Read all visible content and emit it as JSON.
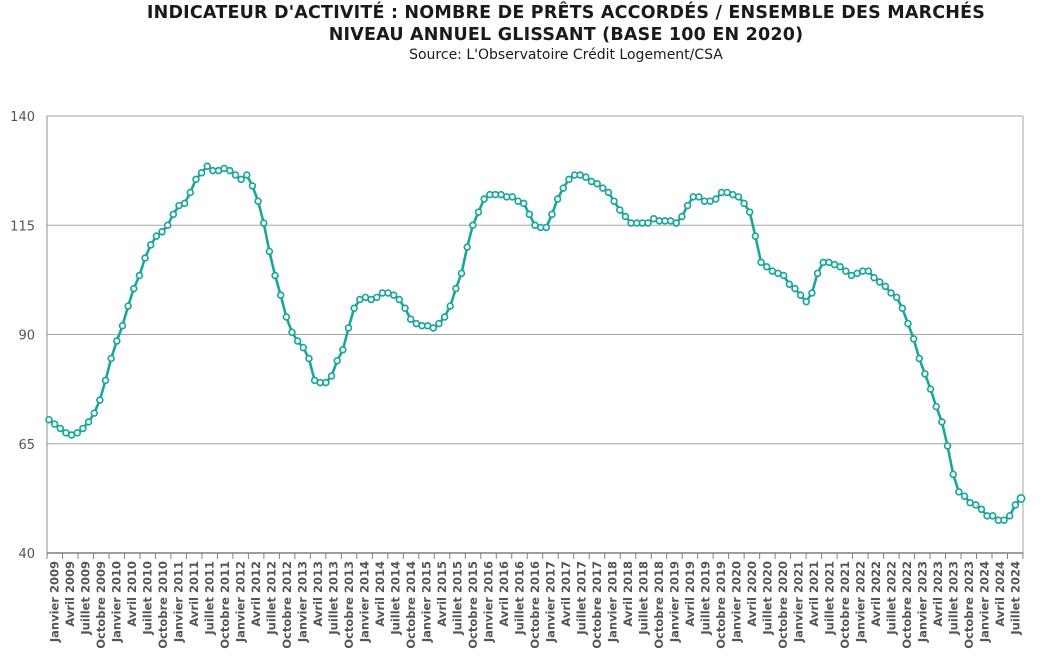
{
  "chart_data": {
    "type": "line",
    "title": "INDICATEUR D'ACTIVITÉ : NOMBRE DE PRÊTS ACCORDÉS / ENSEMBLE DES MARCHÉS",
    "subtitle": "NIVEAU ANNUEL GLISSANT (BASE 100 EN 2020)",
    "source": "Source: L'Observatoire Crédit Logement/CSA",
    "ylim": [
      40,
      140
    ],
    "yticks": [
      "40",
      "65",
      "90",
      "115",
      "140"
    ],
    "grid": true,
    "color": "#1aa69c",
    "x_labels": [
      "Janvier 2009",
      "Avril 2009",
      "Juillet 2009",
      "Octobre 2009",
      "Janvier 2010",
      "Avril 2010",
      "Juillet 2010",
      "Octobre 2010",
      "Janvier 2011",
      "Avril 2011",
      "Juillet 2011",
      "Octobre 2011",
      "Janvier 2012",
      "Avril 2012",
      "Juillet 2012",
      "Octobre 2012",
      "Janvier 2013",
      "Avril 2013",
      "Juillet 2013",
      "Octobre 2013",
      "Janvier 2014",
      "Avril 2014",
      "Juillet 2014",
      "Octobre 2014",
      "Janvier 2015",
      "Avril 2015",
      "Juillet 2015",
      "Octobre 2015",
      "Janvier 2016",
      "Avril 2016",
      "Juillet 2016",
      "Octobre 2016",
      "Janvier 2017",
      "Avril 2017",
      "Juillet 2017",
      "Octobre 2017",
      "Janvier 2018",
      "Avril 2018",
      "Juillet 2018",
      "Octobre 2018",
      "Janvier 2019",
      "Avril 2019",
      "Juillet 2019",
      "Octobre 2019",
      "Janvier 2020",
      "Avril 2020",
      "Juillet 2020",
      "Octobre 2020",
      "Janvier 2021",
      "Avril 2021",
      "Juillet 2021",
      "Octobre 2021",
      "Janvier 2022",
      "Avril 2022",
      "Juillet 2022",
      "Octobre 2022",
      "Janvier 2023",
      "Avril 2023",
      "Juillet 2023",
      "Octobre 2023",
      "Janvier 2024",
      "Avril 2024",
      "Juillet 2024"
    ],
    "values": [
      70.5,
      69.5,
      68.5,
      67.5,
      67,
      67.5,
      68.5,
      70,
      72,
      75,
      79.5,
      84.5,
      88.5,
      92,
      96.5,
      100.5,
      103.5,
      107.5,
      110.5,
      112.5,
      113.5,
      115,
      117.5,
      119.5,
      120,
      122.5,
      125.5,
      127,
      128.5,
      127.5,
      127.5,
      128,
      127.5,
      126.5,
      125.5,
      126.5,
      124,
      120.5,
      115.5,
      109,
      103.5,
      99,
      94,
      90.5,
      88.5,
      87,
      84.5,
      79.5,
      79,
      79,
      80.5,
      84,
      86.5,
      91.5,
      96,
      98,
      98.5,
      98,
      98.5,
      99.5,
      99.5,
      99,
      98,
      96,
      93.5,
      92.5,
      92,
      92,
      91.5,
      92.5,
      94,
      96.5,
      100.5,
      104,
      110,
      115,
      118,
      121,
      122,
      122,
      122,
      121.5,
      121.5,
      120.5,
      120,
      117.5,
      115,
      114.5,
      114.5,
      117.5,
      121,
      123.5,
      125.5,
      126.5,
      126.5,
      126,
      125,
      124.5,
      123.5,
      122.5,
      120.5,
      118.5,
      117,
      115.5,
      115.5,
      115.5,
      115.5,
      116.5,
      116,
      116,
      116,
      115.5,
      117,
      119.5,
      121.5,
      121.5,
      120.5,
      120.5,
      121,
      122.5,
      122.5,
      122,
      121.5,
      120,
      118,
      112.5,
      106.5,
      105.5,
      104.5,
      104,
      103.5,
      101.5,
      100.5,
      99,
      97.5,
      99.5,
      104,
      106.5,
      106.5,
      106,
      105.5,
      104.5,
      103.5,
      104,
      104.5,
      104.5,
      103,
      102,
      101,
      99.5,
      98.5,
      96,
      92.5,
      89,
      84.5,
      81,
      77.5,
      73.5,
      70,
      64.5,
      58,
      54,
      53,
      51.5,
      51,
      50,
      48.5,
      48.5,
      47.5,
      47.5,
      48.5,
      51,
      52.5
    ]
  }
}
